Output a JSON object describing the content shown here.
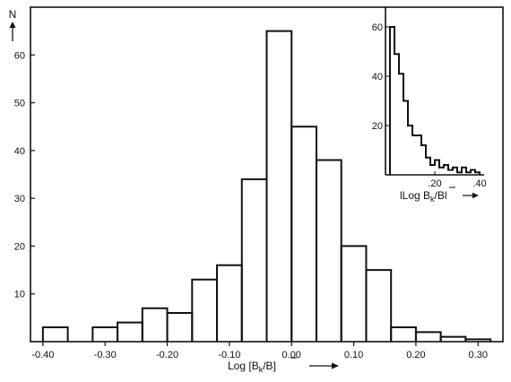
{
  "chart_data": [
    {
      "type": "histogram",
      "xlabel": "Log [B_k / B̄]",
      "xlabel_parts": {
        "prefix": "Log [B",
        "sub": "k",
        "mid": "/",
        "bar": "B",
        "suffix": "]"
      },
      "ylabel": "N",
      "xlim": [
        -0.42,
        0.34
      ],
      "ylim": [
        0,
        70
      ],
      "xticks": [
        -0.4,
        -0.3,
        -0.2,
        -0.1,
        0.0,
        0.1,
        0.2,
        0.3
      ],
      "xtick_labels": [
        "-0.40",
        "-0.30",
        "-0.20",
        "-0.10",
        "0.00",
        "0.10",
        "0.20",
        "0.30"
      ],
      "yticks": [
        10,
        20,
        30,
        40,
        50,
        60
      ],
      "ytick_labels": [
        "10",
        "20",
        "30",
        "40",
        "50",
        "60"
      ],
      "bin_width": 0.04,
      "bins": [
        {
          "x0": -0.4,
          "x1": -0.36,
          "count": 3
        },
        {
          "x0": -0.32,
          "x1": -0.28,
          "count": 3
        },
        {
          "x0": -0.28,
          "x1": -0.24,
          "count": 4
        },
        {
          "x0": -0.24,
          "x1": -0.2,
          "count": 7
        },
        {
          "x0": -0.2,
          "x1": -0.16,
          "count": 6
        },
        {
          "x0": -0.16,
          "x1": -0.12,
          "count": 13
        },
        {
          "x0": -0.12,
          "x1": -0.08,
          "count": 16
        },
        {
          "x0": -0.08,
          "x1": -0.04,
          "count": 34
        },
        {
          "x0": -0.04,
          "x1": 0.0,
          "count": 65
        },
        {
          "x0": 0.0,
          "x1": 0.04,
          "count": 45
        },
        {
          "x0": 0.04,
          "x1": 0.08,
          "count": 38
        },
        {
          "x0": 0.08,
          "x1": 0.12,
          "count": 20
        },
        {
          "x0": 0.12,
          "x1": 0.16,
          "count": 15
        },
        {
          "x0": 0.16,
          "x1": 0.2,
          "count": 3
        },
        {
          "x0": 0.2,
          "x1": 0.24,
          "count": 2
        },
        {
          "x0": 0.24,
          "x1": 0.28,
          "count": 1
        },
        {
          "x0": 0.28,
          "x1": 0.32,
          "count": 0.5
        }
      ]
    },
    {
      "type": "histogram",
      "xlabel": "|Log B_k / B̄| →",
      "xlabel_parts": {
        "prefix": "lLog B",
        "sub": "k",
        "mid": "/",
        "bar": "B",
        "suffix": "l"
      },
      "xlim": [
        0,
        0.42
      ],
      "ylim": [
        0,
        68
      ],
      "xticks": [
        0.2,
        0.4
      ],
      "xtick_labels": [
        ".20",
        ".40"
      ],
      "yticks": [
        20,
        40,
        60
      ],
      "ytick_labels": [
        "20",
        "40",
        "60"
      ],
      "bin_width": 0.02,
      "bins": [
        {
          "x0": 0.0,
          "x1": 0.02,
          "count": 60
        },
        {
          "x0": 0.02,
          "x1": 0.04,
          "count": 49
        },
        {
          "x0": 0.04,
          "x1": 0.06,
          "count": 41
        },
        {
          "x0": 0.06,
          "x1": 0.08,
          "count": 30
        },
        {
          "x0": 0.08,
          "x1": 0.1,
          "count": 20
        },
        {
          "x0": 0.1,
          "x1": 0.12,
          "count": 16
        },
        {
          "x0": 0.12,
          "x1": 0.14,
          "count": 16
        },
        {
          "x0": 0.14,
          "x1": 0.16,
          "count": 12
        },
        {
          "x0": 0.16,
          "x1": 0.18,
          "count": 7
        },
        {
          "x0": 0.18,
          "x1": 0.2,
          "count": 4
        },
        {
          "x0": 0.2,
          "x1": 0.22,
          "count": 6
        },
        {
          "x0": 0.22,
          "x1": 0.24,
          "count": 3
        },
        {
          "x0": 0.24,
          "x1": 0.26,
          "count": 4
        },
        {
          "x0": 0.26,
          "x1": 0.28,
          "count": 2
        },
        {
          "x0": 0.28,
          "x1": 0.3,
          "count": 3
        },
        {
          "x0": 0.3,
          "x1": 0.32,
          "count": 1
        },
        {
          "x0": 0.32,
          "x1": 0.34,
          "count": 3
        },
        {
          "x0": 0.34,
          "x1": 0.36,
          "count": 1
        },
        {
          "x0": 0.36,
          "x1": 0.38,
          "count": 2
        },
        {
          "x0": 0.38,
          "x1": 0.4,
          "count": 1
        }
      ]
    }
  ]
}
